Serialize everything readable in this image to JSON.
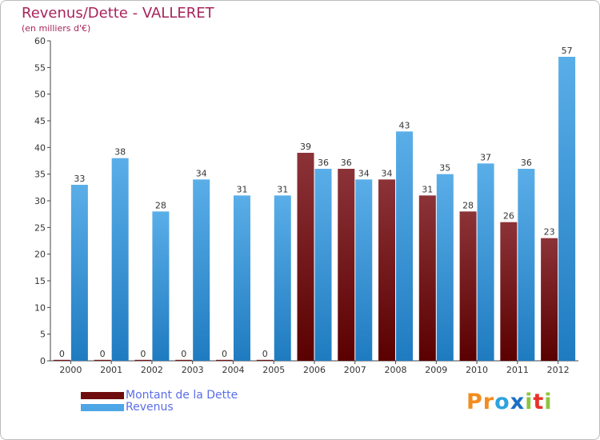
{
  "title": "Revenus/Dette - VALLERET",
  "subtitle": "(en milliers d'€)",
  "legend": [
    {
      "label": "Montant de la Dette",
      "color": "#6e0d0d"
    },
    {
      "label": "Revenus",
      "color": "#4ea6e6"
    }
  ],
  "logo": {
    "letters": [
      "P",
      "r",
      "o",
      "x",
      "i",
      "t",
      "i"
    ],
    "colors": [
      "#f28c1e",
      "#f28c1e",
      "#2ea3dd",
      "#1b6fc4",
      "#8cc63f",
      "#e8332a",
      "#8cc63f"
    ]
  },
  "chart_data": {
    "type": "bar",
    "categories": [
      "2000",
      "2001",
      "2002",
      "2003",
      "2004",
      "2005",
      "2006",
      "2007",
      "2008",
      "2009",
      "2010",
      "2011",
      "2012"
    ],
    "series": [
      {
        "name": "Montant de la Dette",
        "values": [
          0,
          0,
          0,
          0,
          0,
          0,
          39,
          36,
          34,
          31,
          28,
          26,
          23
        ]
      },
      {
        "name": "Revenus",
        "values": [
          33,
          38,
          28,
          34,
          31,
          31,
          36,
          34,
          43,
          35,
          37,
          36,
          57
        ]
      }
    ],
    "yticks": [
      0,
      5,
      10,
      15,
      20,
      25,
      30,
      35,
      40,
      45,
      50,
      55,
      60
    ],
    "ylim": [
      0,
      60
    ],
    "grid": false,
    "title": "Revenus/Dette - VALLERET",
    "ylabel": "(en milliers d'€)",
    "legend_position": "bottom-left"
  }
}
